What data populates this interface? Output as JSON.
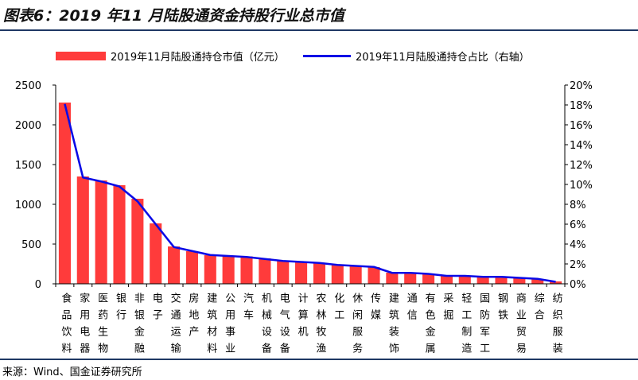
{
  "title": "图表6：2019 年11 月陆股通资金持股行业总市值",
  "source": "来源：Wind、国金证券研究所",
  "colors": {
    "bar": "#FF3B3B",
    "line": "#0A0AE6",
    "rule": "#1F3864",
    "axis": "#000000"
  },
  "legend": {
    "bar_label": "2019年11月陆股通持仓市值（亿元）",
    "line_label": "2019年11月陆股通持仓占比（右轴）"
  },
  "chart_data": {
    "type": "bar",
    "title": "图表6：2019 年11 月陆股通资金持股行业总市值",
    "categories": [
      "食品饮料",
      "家用电器",
      "医药生物",
      "银行",
      "非银金融",
      "电子",
      "交通运输",
      "房地产",
      "建筑材料",
      "公用事业",
      "汽车",
      "机械设备",
      "电气设备",
      "计算机",
      "农林牧渔",
      "化工",
      "休闲服务",
      "传媒",
      "建筑装饰",
      "通信",
      "有色金属",
      "采掘",
      "轻工制造",
      "国防军工",
      "钢铁",
      "商业贸易",
      "综合",
      "纺织服装"
    ],
    "series": [
      {
        "name": "2019年11月陆股通持仓市值（亿元）",
        "type": "bar",
        "axis": "left",
        "unit": "亿元",
        "values": [
          2280,
          1350,
          1300,
          1240,
          1070,
          760,
          470,
          410,
          360,
          350,
          345,
          320,
          290,
          280,
          260,
          240,
          230,
          210,
          140,
          140,
          120,
          100,
          100,
          90,
          90,
          70,
          60,
          30
        ]
      },
      {
        "name": "2019年11月陆股通持仓占比（右轴）",
        "type": "line",
        "axis": "right",
        "unit": "%",
        "values": [
          18.1,
          10.7,
          10.3,
          9.8,
          8.3,
          6.0,
          3.7,
          3.3,
          2.9,
          2.8,
          2.7,
          2.5,
          2.3,
          2.2,
          2.1,
          1.9,
          1.8,
          1.7,
          1.1,
          1.1,
          1.0,
          0.8,
          0.8,
          0.7,
          0.7,
          0.6,
          0.5,
          0.2
        ]
      }
    ],
    "y_left": {
      "range": [
        0,
        2500
      ],
      "ticks": [
        0,
        500,
        1000,
        1500,
        2000,
        2500
      ],
      "tick_labels": [
        "0",
        "500",
        "1000",
        "1500",
        "2000",
        "2500"
      ]
    },
    "y_right": {
      "range": [
        0,
        20
      ],
      "ticks": [
        0,
        2,
        4,
        6,
        8,
        10,
        12,
        14,
        16,
        18,
        20
      ],
      "tick_labels": [
        "0%",
        "2%",
        "4%",
        "6%",
        "8%",
        "10%",
        "12%",
        "14%",
        "16%",
        "18%",
        "20%"
      ]
    },
    "xlabel": "",
    "grid": false,
    "legend_position": "top"
  }
}
